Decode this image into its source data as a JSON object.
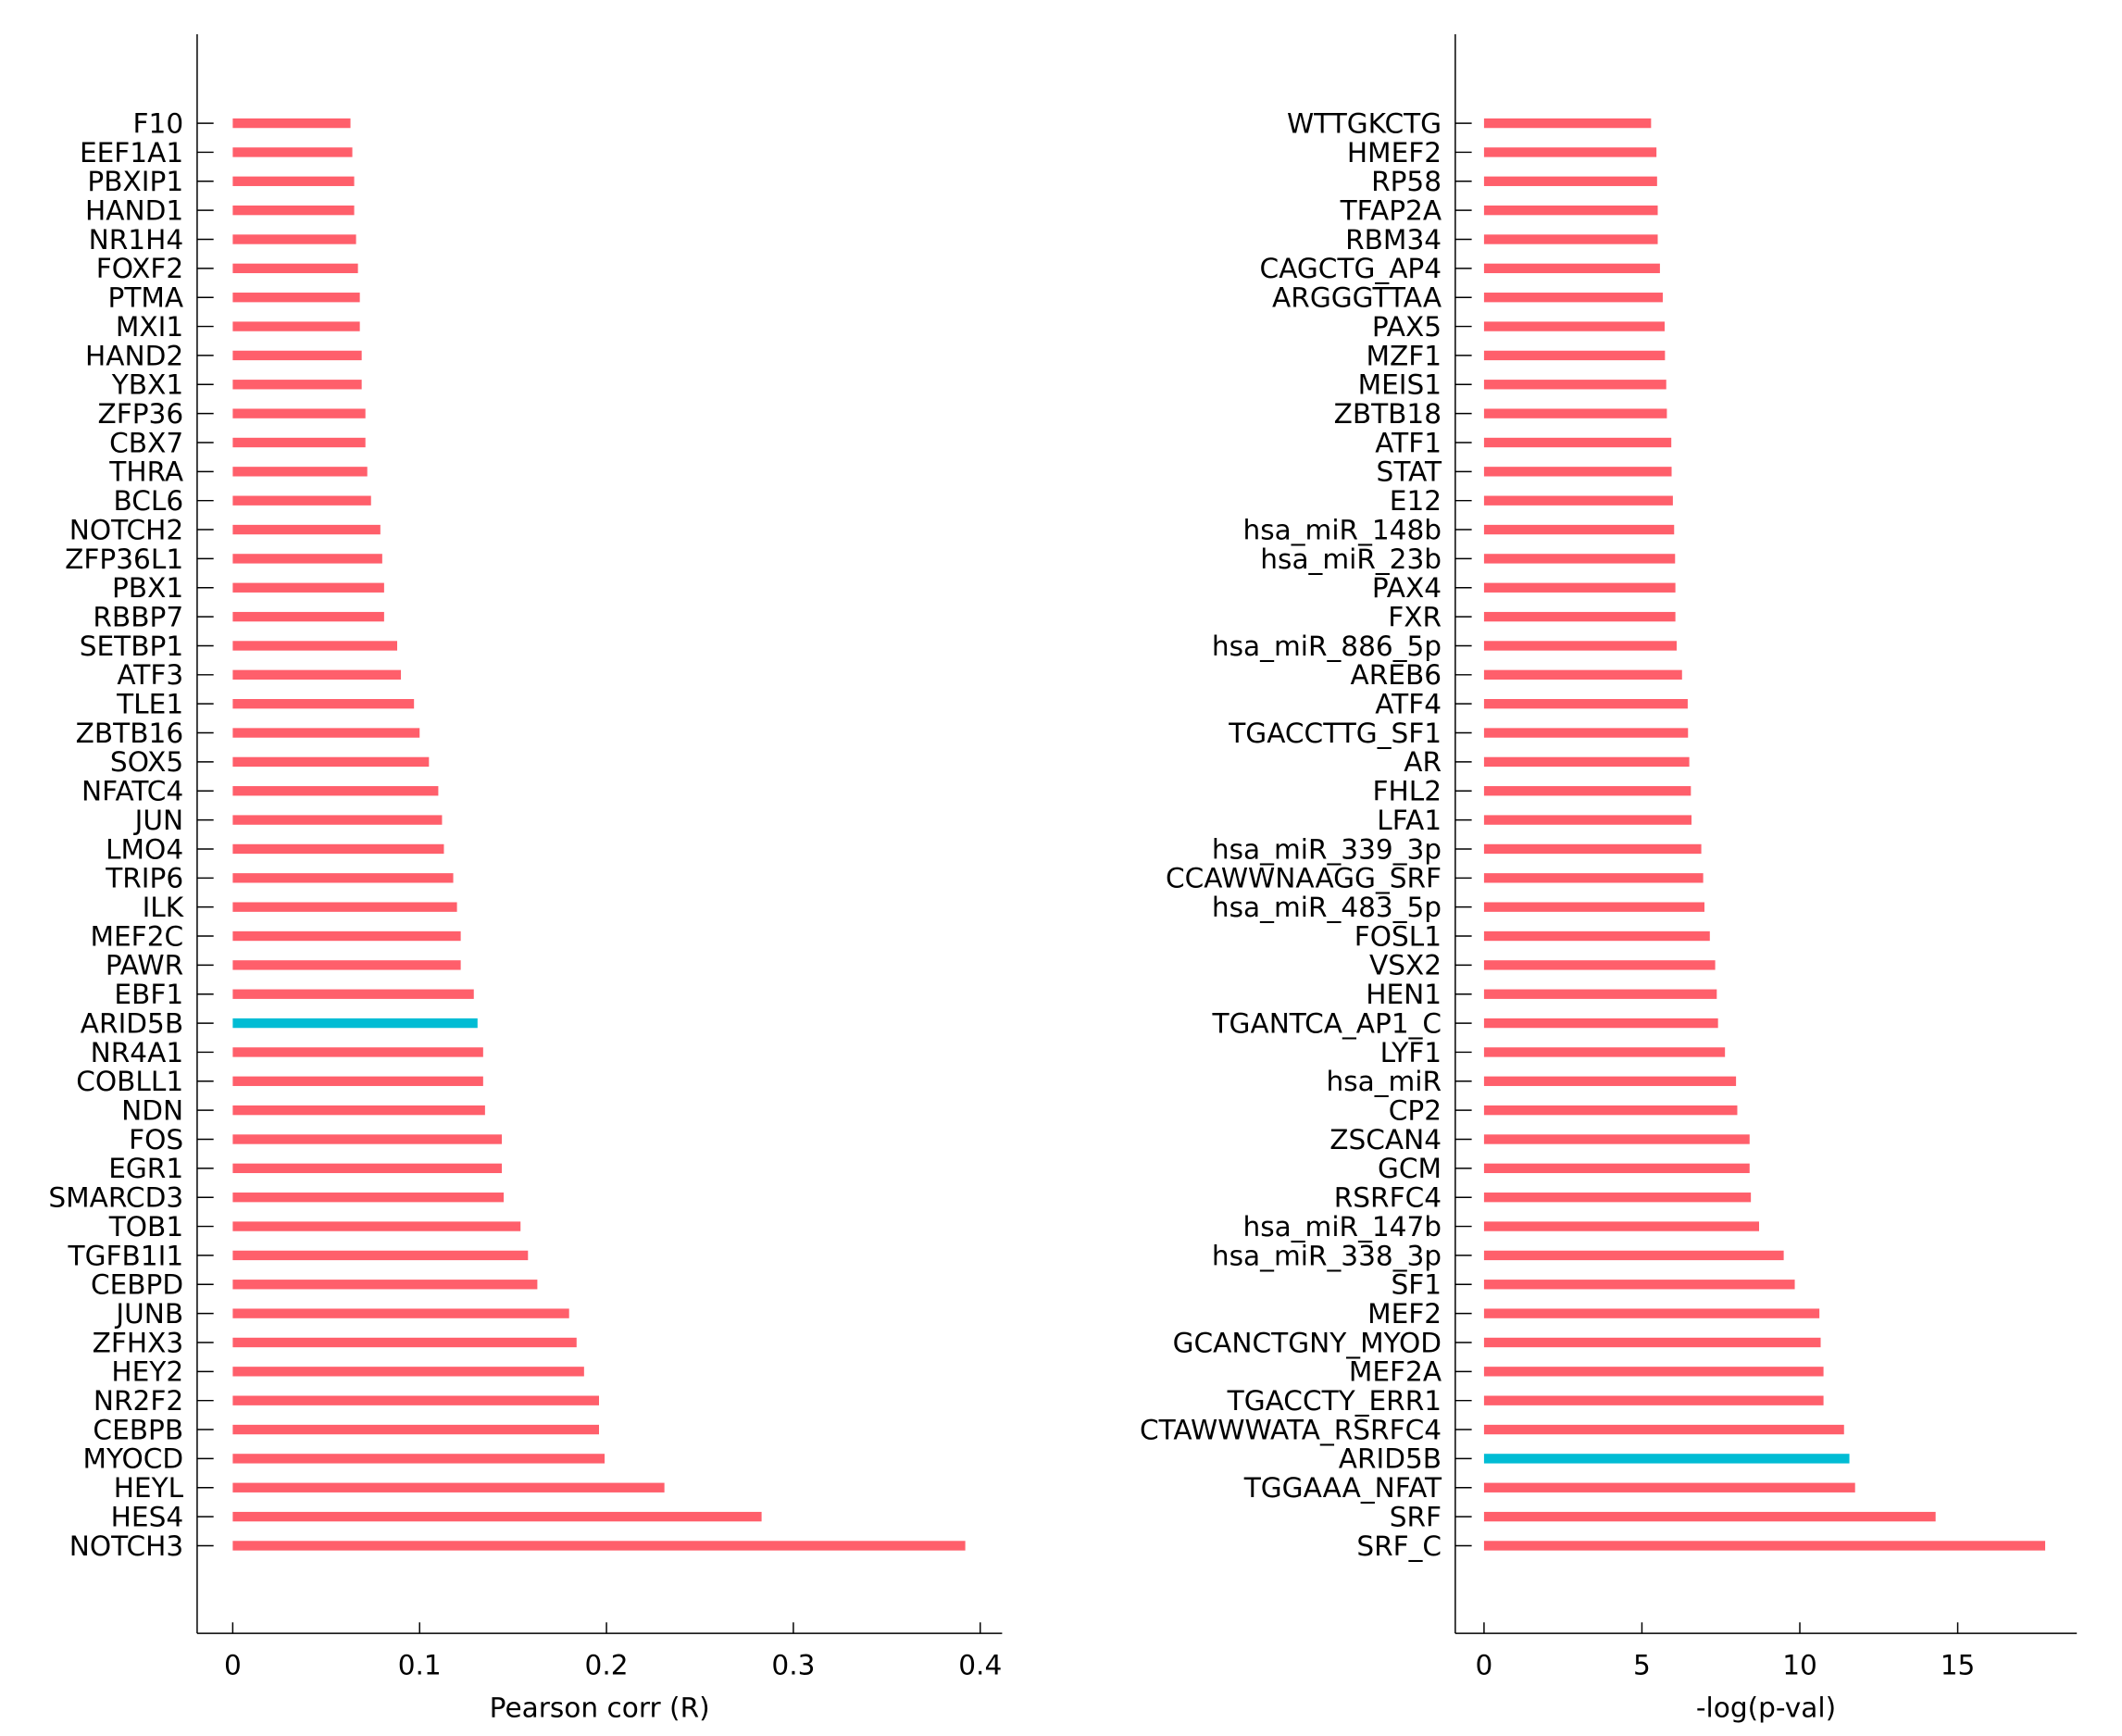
{
  "chart_data": [
    {
      "type": "bar",
      "orientation": "horizontal",
      "xlabel": "Pearson corr (R)",
      "ylabel": "",
      "xlim": [
        -0.02,
        0.415
      ],
      "xticks": [
        0,
        0.1,
        0.2,
        0.3,
        0.4
      ],
      "xtick_labels": [
        "0",
        "0.1",
        "0.2",
        "0.3",
        "0.4"
      ],
      "grid": false,
      "bar_color": "#ff5f6b",
      "highlight_color": "#00bcd4",
      "highlight": "ARID5B",
      "categories": [
        "F10",
        "EEF1A1",
        "PBXIP1",
        "HAND1",
        "NR1H4",
        "FOXF2",
        "PTMA",
        "MXI1",
        "HAND2",
        "YBX1",
        "ZFP36",
        "CBX7",
        "THRA",
        "BCL6",
        "NOTCH2",
        "ZFP36L1",
        "PBX1",
        "RBBP7",
        "SETBP1",
        "ATF3",
        "TLE1",
        "ZBTB16",
        "SOX5",
        "NFATC4",
        "JUN",
        "LMO4",
        "TRIP6",
        "ILK",
        "MEF2C",
        "PAWR",
        "EBF1",
        "ARID5B",
        "NR4A1",
        "COBLL1",
        "NDN",
        "FOS",
        "EGR1",
        "SMARCD3",
        "TOB1",
        "TGFB1I1",
        "CEBPD",
        "JUNB",
        "ZFHX3",
        "HEY2",
        "NR2F2",
        "CEBPB",
        "MYOCD",
        "HEYL",
        "HES4",
        "NOTCH3"
      ],
      "values": [
        0.063,
        0.064,
        0.065,
        0.065,
        0.066,
        0.067,
        0.068,
        0.068,
        0.069,
        0.069,
        0.071,
        0.071,
        0.072,
        0.074,
        0.079,
        0.08,
        0.081,
        0.081,
        0.088,
        0.09,
        0.097,
        0.1,
        0.105,
        0.11,
        0.112,
        0.113,
        0.118,
        0.12,
        0.122,
        0.122,
        0.129,
        0.131,
        0.134,
        0.134,
        0.135,
        0.144,
        0.144,
        0.145,
        0.154,
        0.158,
        0.163,
        0.18,
        0.184,
        0.188,
        0.196,
        0.196,
        0.199,
        0.231,
        0.283,
        0.392
      ]
    },
    {
      "type": "bar",
      "orientation": "horizontal",
      "xlabel": "-log(p-val)",
      "ylabel": "",
      "xlim": [
        -0.9,
        18.6
      ],
      "xticks": [
        0,
        5,
        10,
        15
      ],
      "xtick_labels": [
        "0",
        "5",
        "10",
        "15"
      ],
      "grid": false,
      "bar_color": "#ff5f6b",
      "highlight_color": "#00bcd4",
      "highlight": "ARID5B",
      "categories": [
        "WTTGKCTG",
        "HMEF2",
        "RP58",
        "TFAP2A",
        "RBM34",
        "CAGCTG_AP4",
        "ARGGGTTAA",
        "PAX5",
        "MZF1",
        "MEIS1",
        "ZBTB18",
        "ATF1",
        "STAT",
        "E12",
        "hsa_miR_148b",
        "hsa_miR_23b",
        "PAX4",
        "FXR",
        "hsa_miR_886_5p",
        "AREB6",
        "ATF4",
        "TGACCTTG_SF1",
        "AR",
        "FHL2",
        "LFA1",
        "hsa_miR_339_3p",
        "CCAWWNAAGG_SRF",
        "hsa_miR_483_5p",
        "FOSL1",
        "VSX2",
        "HEN1",
        "TGANTCA_AP1_C",
        "LYF1",
        "hsa_miR",
        "CP2",
        "ZSCAN4",
        "GCM",
        "RSRFC4",
        "hsa_miR_147b",
        "hsa_miR_338_3p",
        "SF1",
        "MEF2",
        "GCANCTGNY_MYOD",
        "MEF2A",
        "TGACCTY_ERR1",
        "CTAWWWATA_RSRFC4",
        "ARID5B",
        "TGGAAA_NFAT",
        "SRF",
        "SRF_C"
      ],
      "values": [
        5.29,
        5.46,
        5.48,
        5.5,
        5.5,
        5.57,
        5.66,
        5.72,
        5.73,
        5.77,
        5.79,
        5.93,
        5.94,
        5.98,
        6.02,
        6.05,
        6.06,
        6.06,
        6.1,
        6.27,
        6.45,
        6.46,
        6.5,
        6.55,
        6.57,
        6.88,
        6.94,
        6.98,
        7.15,
        7.32,
        7.37,
        7.41,
        7.63,
        7.98,
        8.02,
        8.41,
        8.41,
        8.45,
        8.71,
        9.49,
        9.84,
        10.62,
        10.66,
        10.75,
        10.75,
        11.4,
        11.57,
        11.75,
        14.3,
        17.77
      ]
    }
  ]
}
